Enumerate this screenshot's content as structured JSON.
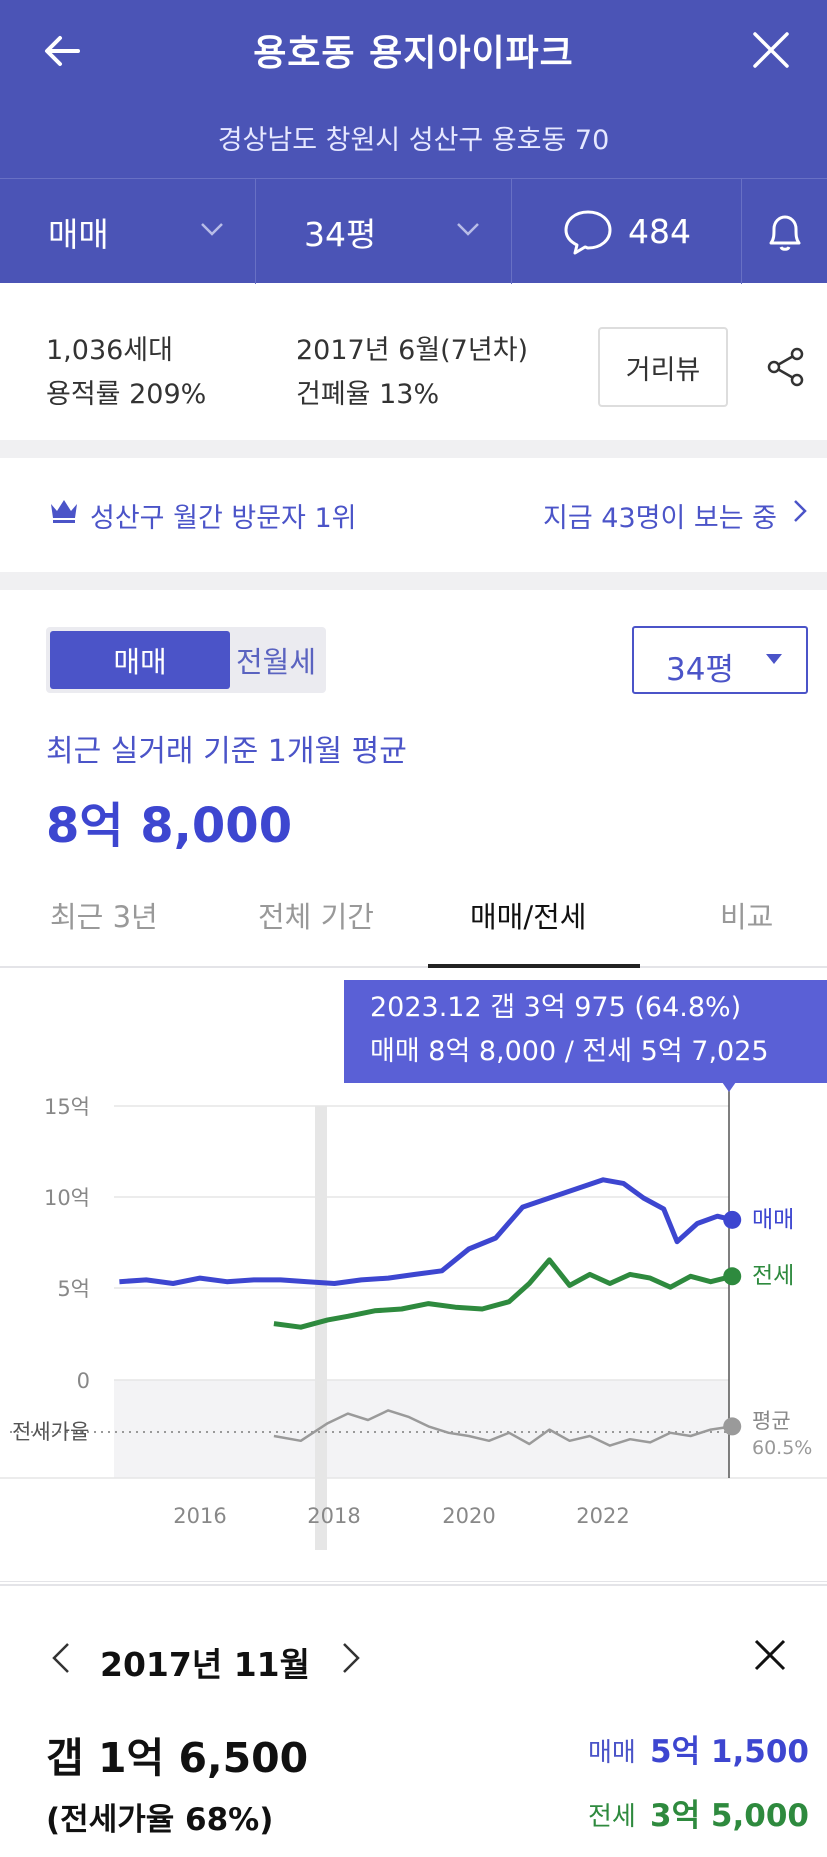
{
  "header": {
    "title": "용호동 용지아이파크",
    "address": "경상남도 창원시 성산구 용호동 70",
    "trade_type": "매매",
    "size": "34평",
    "comment_count": "484"
  },
  "info": {
    "households": "1,036세대",
    "floor_area_ratio": "용적률 209%",
    "built": "2017년 6월(7년차)",
    "coverage_ratio": "건폐율 13%",
    "street_view_label": "거리뷰"
  },
  "rank": {
    "label": "성산구 월간 방문자 1위",
    "viewers": "지금 43명이 보는 중"
  },
  "price": {
    "toggle_on": "매매",
    "toggle_off": "전월세",
    "size_select": "34평",
    "avg_label": "최근 실거래 기준 1개월 평균",
    "avg_value": "8억 8,000"
  },
  "tabs": [
    "최근 3년",
    "전체 기간",
    "매매/전세",
    "비교"
  ],
  "tooltip": {
    "line1": "2023.12  갭 3억 975 (64.8%)",
    "line2": "매매 8억 8,000 / 전세 5억 7,025"
  },
  "chart_data": {
    "type": "line",
    "x_ticks": [
      "2016",
      "2018",
      "2020",
      "2022"
    ],
    "y_ticks": [
      "15억",
      "10억",
      "5억",
      "0"
    ],
    "ylim": [
      0,
      15
    ],
    "ylabel_ratio": "전세가율",
    "series": [
      {
        "name": "매매",
        "color": "#3d46d0",
        "x": [
          2014.8,
          2015.2,
          2015.6,
          2016.0,
          2016.4,
          2016.8,
          2017.2,
          2017.6,
          2018.0,
          2018.4,
          2018.8,
          2019.2,
          2019.6,
          2020.0,
          2020.4,
          2020.8,
          2021.2,
          2021.6,
          2022.0,
          2022.3,
          2022.6,
          2022.9,
          2023.1,
          2023.4,
          2023.7,
          2023.92
        ],
        "y": [
          5.4,
          5.5,
          5.3,
          5.6,
          5.4,
          5.5,
          5.5,
          5.4,
          5.3,
          5.5,
          5.6,
          5.8,
          6.0,
          7.2,
          7.8,
          9.5,
          10.0,
          10.5,
          11.0,
          10.8,
          10.0,
          9.4,
          7.6,
          8.6,
          9.0,
          8.8
        ]
      },
      {
        "name": "전세",
        "color": "#2e8a3e",
        "x": [
          2017.1,
          2017.5,
          2017.9,
          2018.2,
          2018.6,
          2019.0,
          2019.4,
          2019.8,
          2020.2,
          2020.6,
          2020.9,
          2021.2,
          2021.5,
          2021.8,
          2022.1,
          2022.4,
          2022.7,
          2023.0,
          2023.3,
          2023.6,
          2023.92
        ],
        "y": [
          3.1,
          2.9,
          3.3,
          3.5,
          3.8,
          3.9,
          4.2,
          4.0,
          3.9,
          4.3,
          5.3,
          6.6,
          5.2,
          5.8,
          5.3,
          5.8,
          5.6,
          5.1,
          5.7,
          5.4,
          5.7
        ]
      },
      {
        "name": "전세가율",
        "color": "#9a9a9a",
        "x": [
          2017.1,
          2017.5,
          2017.9,
          2018.2,
          2018.5,
          2018.8,
          2019.1,
          2019.4,
          2019.7,
          2020.0,
          2020.3,
          2020.6,
          2020.9,
          2021.2,
          2021.5,
          2021.8,
          2022.1,
          2022.4,
          2022.7,
          2023.0,
          2023.3,
          2023.6,
          2023.92
        ],
        "y": [
          58,
          55,
          66,
          72,
          68,
          74,
          70,
          64,
          60,
          58,
          55,
          60,
          53,
          62,
          55,
          58,
          52,
          56,
          54,
          60,
          58,
          62,
          64
        ]
      }
    ],
    "legend": {
      "sale": "매매",
      "jeonse": "전세",
      "avg_label": "평균",
      "avg_value": "60.5%"
    }
  },
  "detail": {
    "month": "2017년 11월",
    "gap": "갭 1억 6,500",
    "ratio": "(전세가율 68%)",
    "sale_label": "매매",
    "sale_value": "5억 1,500",
    "jeonse_label": "전세",
    "jeonse_value": "3억 5,000"
  },
  "colors": {
    "header_bg": "#4b54b6",
    "accent": "#4b54c8",
    "sale": "#3d46d0",
    "jeonse": "#2e8a3e"
  }
}
